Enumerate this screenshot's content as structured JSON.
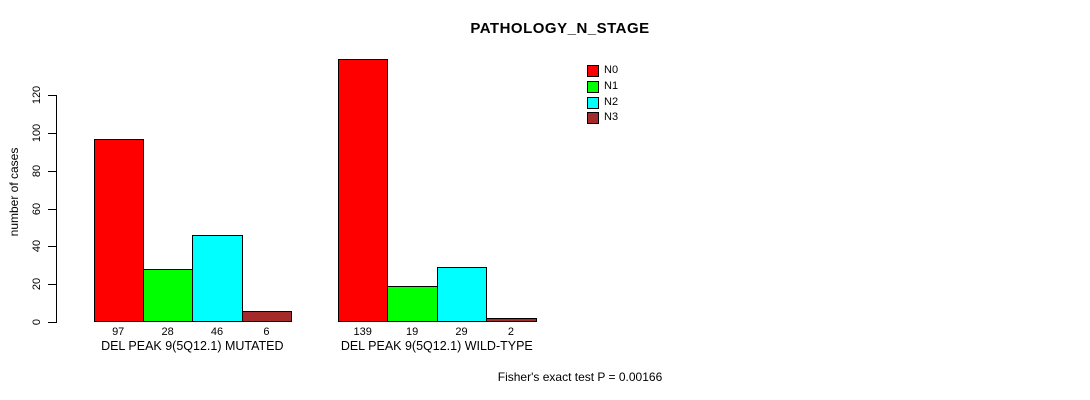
{
  "chart_data": {
    "type": "bar",
    "title": "PATHOLOGY_N_STAGE",
    "ylabel": "number of cases",
    "xlabel": "",
    "footer": "Fisher's exact test P = 0.00166",
    "categories": [
      "DEL PEAK 9(5Q12.1) MUTATED",
      "DEL PEAK 9(5Q12.1) WILD-TYPE"
    ],
    "series": [
      {
        "name": "N0",
        "color": "#FF0000",
        "values": [
          97,
          139
        ]
      },
      {
        "name": "N1",
        "color": "#00FF00",
        "values": [
          28,
          19
        ]
      },
      {
        "name": "N2",
        "color": "#00FFFF",
        "values": [
          46,
          29
        ]
      },
      {
        "name": "N3",
        "color": "#A52A2A",
        "values": [
          6,
          2
        ]
      }
    ],
    "yticks": [
      0,
      20,
      40,
      60,
      80,
      100,
      120
    ],
    "ylim": [
      0,
      140
    ],
    "bar_value_labels_shown": true,
    "legend_position": "top-right",
    "grid": false,
    "background_color": "#FFFFFF",
    "axis_color": "#000000"
  }
}
